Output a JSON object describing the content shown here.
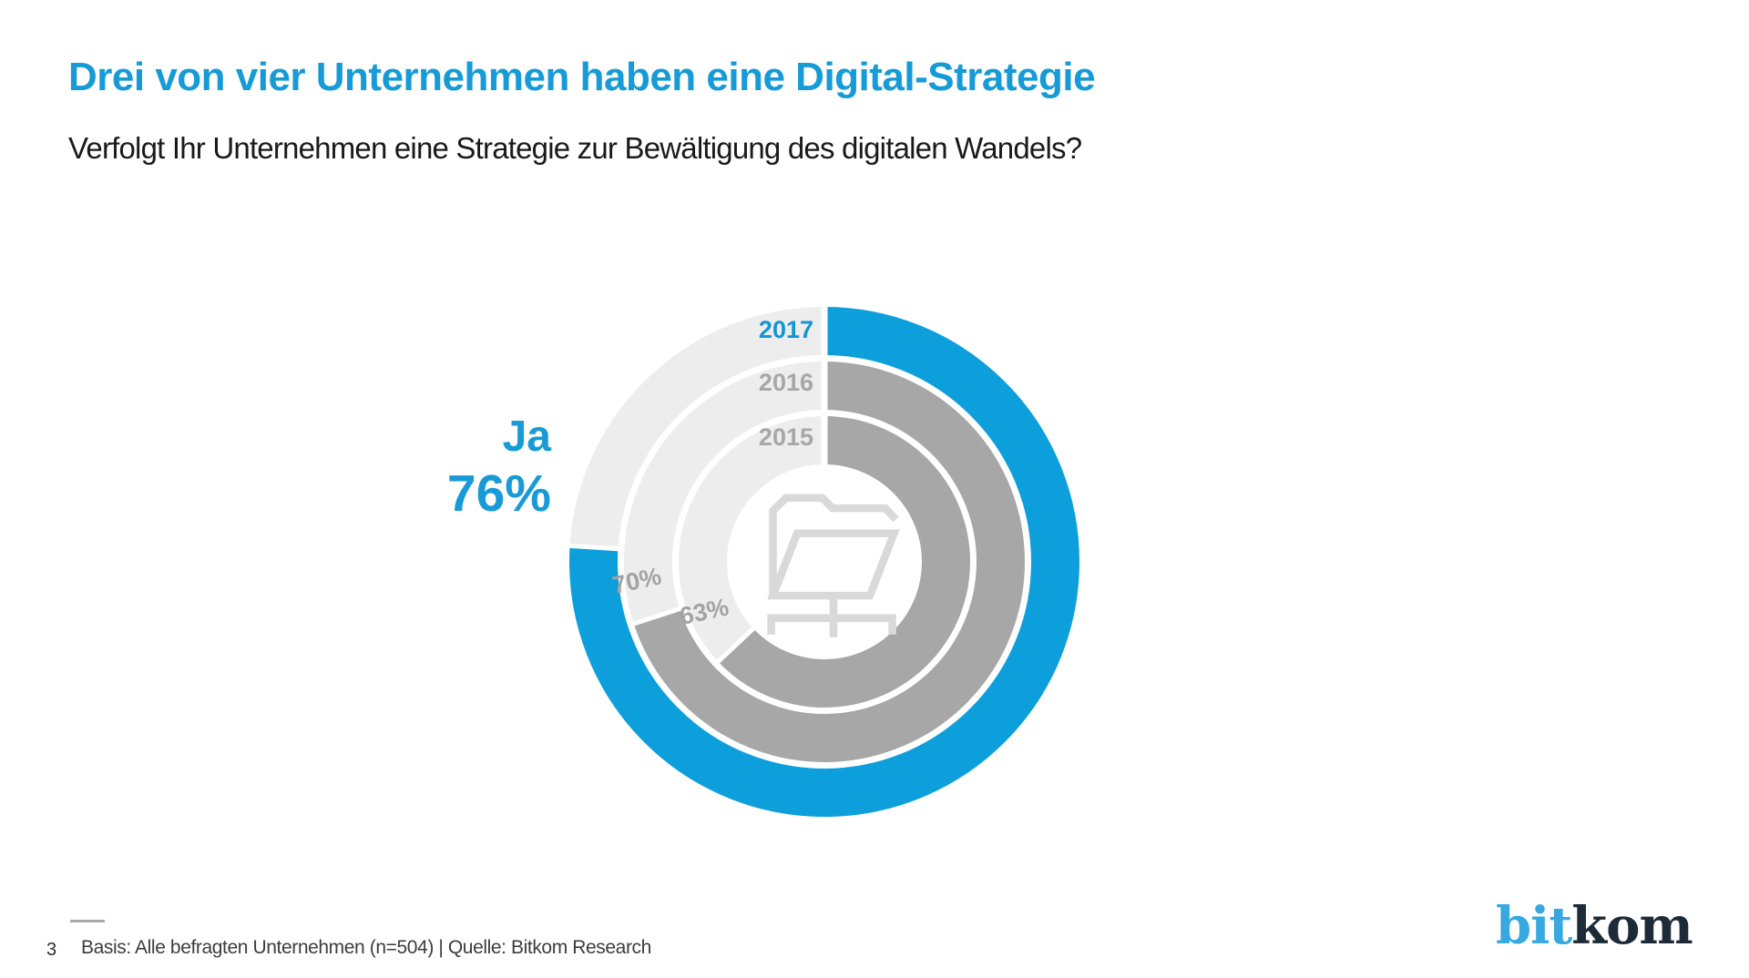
{
  "page": {
    "background": "#ffffff"
  },
  "header": {
    "title": "Drei von vier Unternehmen haben eine Digital-Strategie",
    "subtitle": "Verfolgt Ihr Unternehmen eine Strategie zur Bewältigung des digitalen Wandels?"
  },
  "colors": {
    "accent_blue": "#169bd7",
    "ring_blue": "#0d9fdc",
    "ring_gray": "#a7a7a7",
    "remainder_gray": "#ededed",
    "icon_gray": "#d9d9d9",
    "label_gray": "#a3a3a3",
    "footer_text": "#3d3d3d",
    "logo_blue": "#38a8e0",
    "logo_dark": "#1d2b38"
  },
  "chart_data": {
    "type": "donut",
    "title": "Drei von vier Unternehmen haben eine Digital-Strategie",
    "question": "Verfolgt Ihr Unternehmen eine Strategie zur Bewältigung des digitalen Wandels?",
    "unit": "percent",
    "start_angle_deg": 0,
    "direction": "clockwise",
    "legend_position": "labels-inside-rings",
    "answer": {
      "label": "Ja",
      "value": "76%"
    },
    "rings": [
      {
        "year": "2017",
        "value": 76,
        "label": "76%",
        "color": "#0d9fdc",
        "highlight": true
      },
      {
        "year": "2016",
        "value": 70,
        "label": "70%",
        "color": "#a7a7a7",
        "highlight": false
      },
      {
        "year": "2015",
        "value": 63,
        "label": "63%",
        "color": "#a7a7a7",
        "highlight": false
      }
    ],
    "remainder_color": "#ededed",
    "center_icon": "shared-folder"
  },
  "footer": {
    "page_number": "3",
    "source": "Basis: Alle befragten Unternehmen (n=504) | Quelle: Bitkom Research"
  },
  "logo": {
    "first": "bit",
    "second": "kom"
  }
}
